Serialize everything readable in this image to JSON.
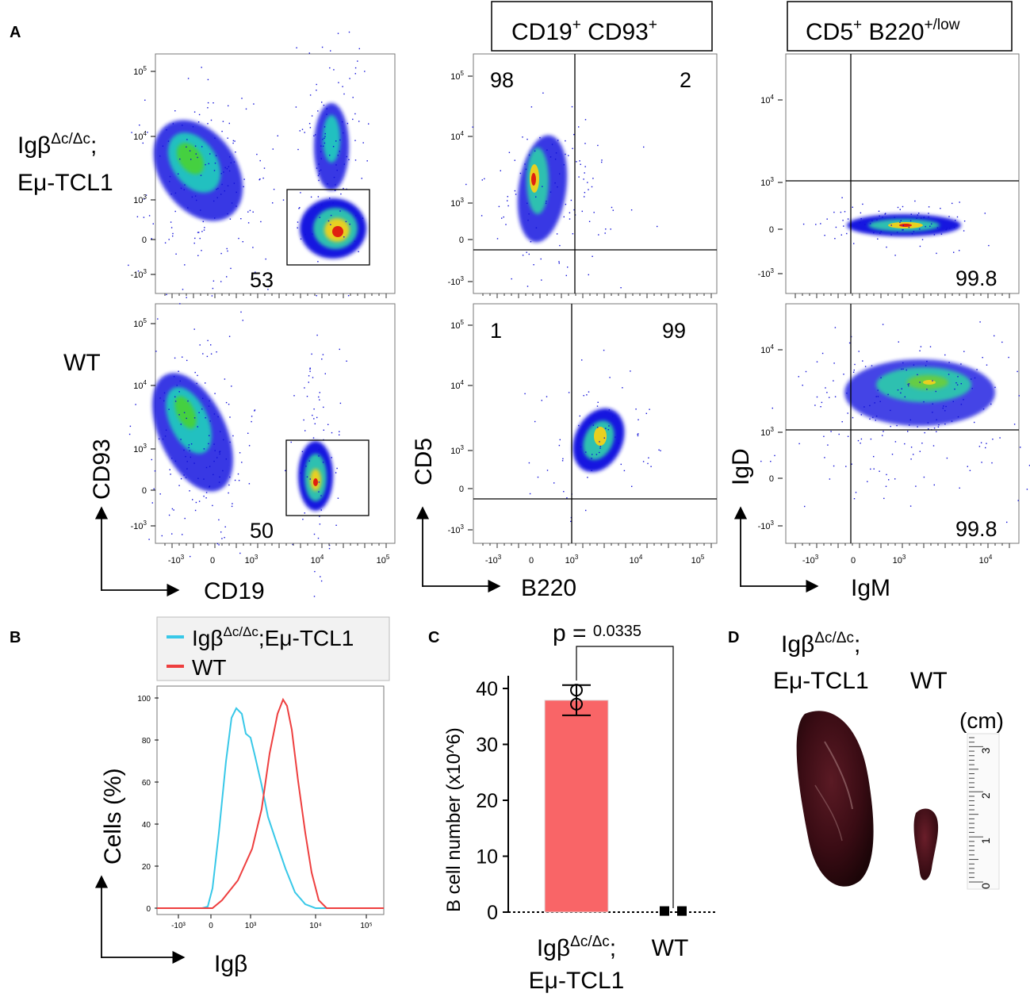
{
  "figure": {
    "panels": {
      "a": "A",
      "b": "B",
      "c": "C",
      "d": "D"
    },
    "rows": {
      "row1_genotype_line1": "Igβ",
      "row1_genotype_sup": "Δc/Δc",
      "row1_genotype_semicolon": ";",
      "row1_genotype_line2": "Eμ-TCL1",
      "row2_genotype": "WT"
    },
    "col_headers": {
      "col2": {
        "base1": "CD19",
        "sup1": "+",
        "base2": " CD93",
        "sup2": "+"
      },
      "col3": {
        "base1": "CD5",
        "sup1": "+",
        "base2": " B220",
        "sup2": "+/low"
      }
    },
    "axes": {
      "col1_y": "CD93",
      "col1_x": "CD19",
      "col2_y": "CD5",
      "col2_x": "B220",
      "col3_y": "IgD",
      "col3_x": "IgM"
    },
    "tick_labels": {
      "d1e5": "10",
      "e5": "5",
      "d1e4": "10",
      "e4": "4",
      "d1e3": "10",
      "e3": "3",
      "zero": "0",
      "neg": "-10",
      "eneg": "3"
    },
    "gates": {
      "r1c1": "53",
      "r2c1": "50",
      "r1c2_left": "98",
      "r1c2_right": "2",
      "r2c2_left": "1",
      "r2c2_right": "99",
      "r1c3": "99.8",
      "r2c3": "99.8"
    }
  },
  "histogram": {
    "legend": [
      {
        "base": "Igβ",
        "sup": "Δc/Δc",
        "rest": ";Eμ-TCL1",
        "color": "#38c8e8"
      },
      {
        "base": "WT",
        "sup": "",
        "rest": "",
        "color": "#ee3f3f"
      }
    ],
    "ylabel": "Cells (%)",
    "xlabel": "Igβ",
    "yticks": [
      "0",
      "20",
      "40",
      "60",
      "80",
      "100"
    ],
    "xticks": [
      "-10³",
      "0",
      "10³",
      "10⁴",
      "10⁵"
    ]
  },
  "chart_data": {
    "type": "bar",
    "ylabel": "B cell number (x10^6)",
    "yticks": [
      "0",
      "10",
      "20",
      "30",
      "40"
    ],
    "ylim": [
      0,
      42
    ],
    "categories": [
      {
        "line1_base": "Igβ",
        "line1_sup": "Δc/Δc",
        "line1_end": ";",
        "line2": "Eμ-TCL1"
      },
      {
        "line1_base": "WT",
        "line1_sup": "",
        "line1_end": "",
        "line2": ""
      }
    ],
    "values": [
      37.9,
      0.2
    ],
    "errors": [
      [
        35.2,
        40.6
      ],
      [
        0.1,
        0.3
      ]
    ],
    "points": [
      [
        37.2,
        39.7
      ],
      [
        0.2,
        0.2
      ]
    ],
    "bar_color": "#f96567",
    "p_prefix": "p = ",
    "p_value": "0.0335"
  },
  "photo": {
    "label1_base": "Igβ",
    "label1_sup": "Δc/Δc",
    "label1_end": ";",
    "label1_line2": "Eμ-TCL1",
    "label2": "WT",
    "unit": "(cm)",
    "ruler_ticks": [
      "0",
      "1",
      "2",
      "3"
    ]
  }
}
